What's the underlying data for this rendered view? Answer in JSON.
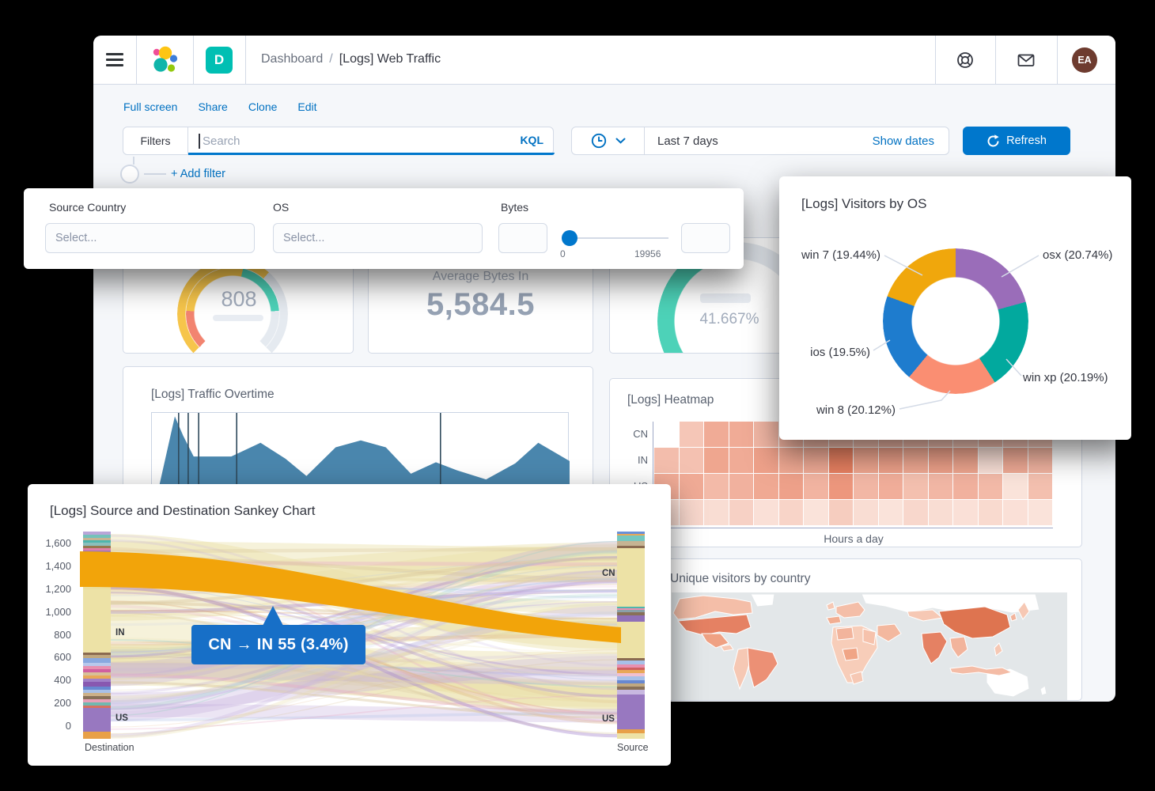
{
  "colors": {
    "primary": "#0077CC",
    "link": "#0071C2",
    "text": "#343741",
    "subdued": "#69707D",
    "border": "#D3DAE6",
    "page_bg": "#F5F7FA",
    "tooltip_bg": "#176FC7",
    "avatar_bg": "#6E3B2F",
    "space_tile_bg": "#00BFB3",
    "gauge": {
      "yellow": "#F6C54B",
      "salmon": "#F28470",
      "teal": "#4DD2B8",
      "track": "#E5EAF0"
    },
    "heatmap": {
      "low": "#FDF1EC",
      "high": "#E67351"
    },
    "sankey_highlight": "#F2A40A"
  },
  "icons": {
    "menu": "hamburger-icon",
    "brand": "elastic-logo",
    "help": "lifebuoy-icon",
    "mail": "envelope-icon",
    "time": "clock-icon",
    "time_expand": "chevron-down-icon",
    "refresh": "refresh-icon"
  },
  "window": {
    "breadcrumbs": {
      "section": "Dashboard",
      "separator": "/",
      "page": "[Logs] Web Traffic"
    },
    "space_initial": "D",
    "avatar_initials": "EA"
  },
  "menu": {
    "links": [
      "Full screen",
      "Share",
      "Clone",
      "Edit"
    ]
  },
  "search": {
    "filters_label": "Filters",
    "placeholder": "Search",
    "language_label": "KQL"
  },
  "time": {
    "range": "Last 7 days",
    "show_dates_label": "Show dates",
    "refresh_label": "Refresh"
  },
  "filter_row": {
    "add_filter_label": "+ Add filter"
  },
  "controls": {
    "source_country": {
      "label": "Source Country",
      "placeholder": "Select..."
    },
    "os": {
      "label": "OS",
      "placeholder": "Select..."
    },
    "bytes": {
      "label": "Bytes",
      "range_min": "0",
      "range_max": "19956"
    }
  },
  "chart_data": [
    {
      "type": "pie",
      "subtype": "donut",
      "title": "[Logs] Visitors by OS",
      "start": "top",
      "direction": "clockwise",
      "slices": [
        {
          "label": "osx",
          "value": 20.74,
          "display": "osx (20.74%)",
          "color": "#9A6DB9"
        },
        {
          "label": "win xp",
          "value": 20.19,
          "display": "win xp (20.19%)",
          "color": "#02A99E"
        },
        {
          "label": "win 8",
          "value": 20.12,
          "display": "win 8 (20.12%)",
          "color": "#FA8E72"
        },
        {
          "label": "ios",
          "value": 19.5,
          "display": "ios (19.5%)",
          "color": "#1E7CCE"
        },
        {
          "label": "win 7",
          "value": 19.44,
          "display": "win 7 (19.44%)",
          "color": "#F0A70C"
        }
      ]
    },
    {
      "type": "gauge",
      "display": "808",
      "value": 808
    },
    {
      "type": "metric",
      "title": "Average Bytes In",
      "display": "5,584.5",
      "value": 5584.5
    },
    {
      "type": "gauge",
      "display": "41.667%",
      "value": 41.667,
      "max": 100
    },
    {
      "type": "area",
      "title": "[Logs] Traffic Overtime",
      "series": [
        {
          "name": "main",
          "color": "#4A86AD",
          "points": [
            [
              0,
              0.08
            ],
            [
              0.055,
              0.97
            ],
            [
              0.075,
              0.8
            ],
            [
              0.1,
              0.62
            ],
            [
              0.19,
              0.62
            ],
            [
              0.26,
              0.74
            ],
            [
              0.32,
              0.6
            ],
            [
              0.37,
              0.45
            ],
            [
              0.44,
              0.7
            ],
            [
              0.5,
              0.76
            ],
            [
              0.56,
              0.7
            ],
            [
              0.62,
              0.47
            ],
            [
              0.68,
              0.57
            ],
            [
              0.73,
              0.5
            ],
            [
              0.8,
              0.42
            ],
            [
              0.87,
              0.56
            ],
            [
              0.925,
              0.74
            ],
            [
              1,
              0.58
            ]
          ]
        },
        {
          "name": "secondary-teal",
          "color": "#54B399",
          "points": [
            [
              0,
              0.01
            ],
            [
              0.12,
              0.02
            ],
            [
              0.18,
              0.1
            ],
            [
              0.24,
              0.02
            ],
            [
              0.4,
              0.04
            ],
            [
              0.46,
              0.16
            ],
            [
              0.52,
              0.06
            ],
            [
              0.6,
              0.03
            ],
            [
              0.68,
              0.1
            ],
            [
              0.74,
              0.02
            ],
            [
              0.86,
              0.03
            ],
            [
              0.95,
              0.18
            ],
            [
              1,
              0.22
            ]
          ]
        },
        {
          "name": "secondary-blue",
          "color": "#4C9BD4",
          "points": [
            [
              0,
              0.01
            ],
            [
              0.3,
              0.02
            ],
            [
              0.36,
              0.12
            ],
            [
              0.42,
              0.03
            ],
            [
              0.55,
              0.02
            ],
            [
              0.62,
              0.08
            ],
            [
              0.7,
              0.03
            ],
            [
              0.82,
              0.1
            ],
            [
              0.9,
              0.04
            ],
            [
              1,
              0.06
            ]
          ]
        }
      ],
      "annotations_x": [
        0.064,
        0.087,
        0.112,
        0.203,
        0.691
      ]
    },
    {
      "type": "heatmap",
      "title": "[Logs] Heatmap",
      "xlabel": "Hours a day",
      "rows": [
        "CN",
        "IN",
        "US",
        ""
      ],
      "values": [
        [
          0,
          0.3,
          0.48,
          0.48,
          0.4,
          0.42,
          0.38,
          0.36,
          0.34,
          0.38,
          0.36,
          0.33,
          0.3,
          0.34,
          0.31,
          0.28
        ],
        [
          0.36,
          0.33,
          0.52,
          0.48,
          0.55,
          0.5,
          0.48,
          0.78,
          0.52,
          0.55,
          0.5,
          0.55,
          0.52,
          0.12,
          0.48,
          0.42
        ],
        [
          0.48,
          0.48,
          0.38,
          0.44,
          0.5,
          0.55,
          0.42,
          0.62,
          0.4,
          0.46,
          0.34,
          0.4,
          0.44,
          0.38,
          0.1,
          0.34
        ],
        [
          0.14,
          0.18,
          0.14,
          0.22,
          0.12,
          0.2,
          0.1,
          0.25,
          0.14,
          0.1,
          0.18,
          0.14,
          0.12,
          0.16,
          0.12,
          0.1
        ]
      ]
    },
    {
      "type": "sankey",
      "title": "[Logs] Source and Destination Sankey Chart",
      "y_ticks": [
        "1,600",
        "1,400",
        "1,200",
        "1,000",
        "800",
        "600",
        "400",
        "200",
        "0"
      ],
      "left_axis_label": "Destination",
      "right_axis_label": "Source",
      "left_node_labels": [
        "IN",
        "US"
      ],
      "right_node_labels": [
        "CN",
        "US"
      ],
      "tooltip": {
        "display": "CN → IN 55 (3.4%)",
        "source": "CN",
        "target": "IN",
        "value": 55,
        "pct": "3.4%"
      }
    },
    {
      "type": "map",
      "title": "Unique visitors by country"
    }
  ]
}
